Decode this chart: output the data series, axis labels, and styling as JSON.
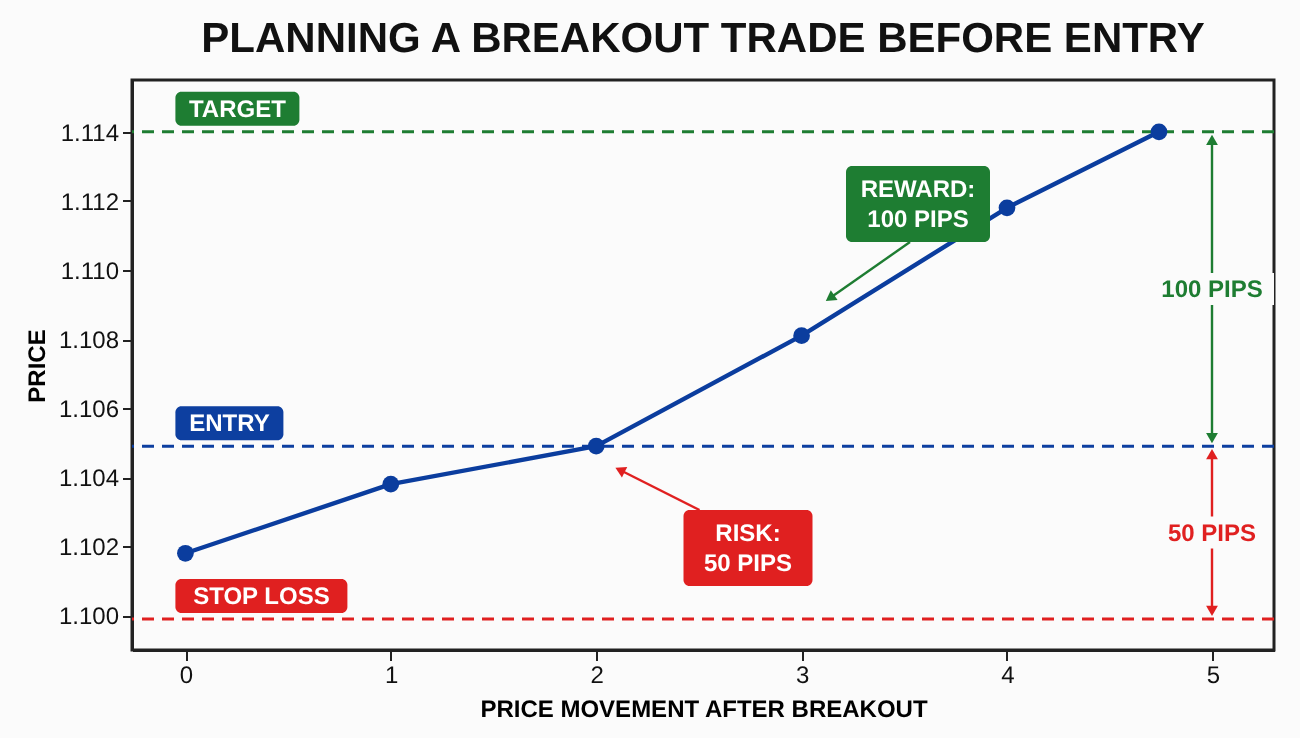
{
  "chart_data": {
    "type": "line",
    "title": "PLANNING A BREAKOUT TRADE BEFORE ENTRY",
    "xlabel": "PRICE MOVEMENT AFTER BREAKOUT",
    "ylabel": "PRICE",
    "x": [
      0,
      1,
      2,
      3,
      4,
      4.74
    ],
    "series": [
      {
        "color": "#0b3d9e",
        "values": [
          1.1018,
          1.1038,
          1.1049,
          1.1081,
          1.1118,
          1.114
        ]
      }
    ],
    "marker": "circle",
    "line_style": "solid",
    "grid": false,
    "xlim": [
      -0.26,
      5.3
    ],
    "xticks": [
      0,
      1,
      2,
      3,
      4,
      5
    ],
    "ylim": [
      1.099,
      1.1155
    ],
    "yticks": [
      {
        "value": 1.1,
        "label": "1.100"
      },
      1.102,
      1.104,
      1.106,
      1.108,
      {
        "value": 1.11,
        "label": "1.110"
      },
      1.112,
      1.114
    ],
    "ref_lines": [
      {
        "axis": "y",
        "value": 1.114,
        "label": "TARGET",
        "color": "#1e7d32",
        "line_style": "dashed"
      },
      {
        "axis": "y",
        "value": 1.1049,
        "label": "ENTRY",
        "color": "#0d3fa0",
        "line_style": "dashed"
      },
      {
        "axis": "y",
        "value": 1.0999,
        "label": "STOP LOSS",
        "color": "#e02020",
        "line_style": "dashed"
      }
    ],
    "annotations": [
      "REWARD:\n100 PIPS",
      "RISK:\n50 PIPS",
      "100 PIPS",
      "50 PIPS"
    ]
  }
}
